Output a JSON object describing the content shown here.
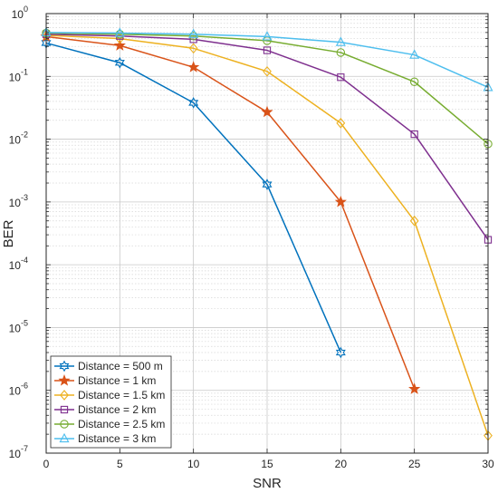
{
  "chart_data": {
    "type": "line",
    "xlabel": "SNR",
    "ylabel": "BER",
    "x": [
      0,
      5,
      10,
      15,
      20,
      25,
      30
    ],
    "xlim": [
      0,
      30
    ],
    "xticks": [
      0,
      5,
      10,
      15,
      20,
      25,
      30
    ],
    "y_scale": "log",
    "ylim": [
      1e-07,
      1
    ],
    "yticks": [
      {
        "base": "10",
        "exp": "0"
      },
      {
        "base": "10",
        "exp": "-1"
      },
      {
        "base": "10",
        "exp": "-2"
      },
      {
        "base": "10",
        "exp": "-3"
      },
      {
        "base": "10",
        "exp": "-4"
      },
      {
        "base": "10",
        "exp": "-5"
      },
      {
        "base": "10",
        "exp": "-6"
      },
      {
        "base": "10",
        "exp": "-7"
      }
    ],
    "grid": true,
    "minor_grid": true,
    "legend_position": "bottom-left",
    "series": [
      {
        "name": "Distance = 500 m",
        "color": "#0072BD",
        "marker": "hexagram",
        "values": [
          0.34,
          0.165,
          0.038,
          0.0019,
          4e-06,
          null,
          null
        ]
      },
      {
        "name": "Distance = 1 km",
        "color": "#D95319",
        "marker": "pentagram",
        "values": [
          0.43,
          0.31,
          0.14,
          0.027,
          0.001,
          1.05e-06,
          null
        ]
      },
      {
        "name": "Distance = 1.5 km",
        "color": "#EDB120",
        "marker": "diamond",
        "values": [
          0.45,
          0.4,
          0.28,
          0.12,
          0.018,
          0.0005,
          1.9e-07
        ]
      },
      {
        "name": "Distance = 2 km",
        "color": "#7E2F8E",
        "marker": "square",
        "values": [
          0.47,
          0.44,
          0.39,
          0.26,
          0.097,
          0.012,
          0.00025
        ]
      },
      {
        "name": "Distance = 2.5 km",
        "color": "#77AC30",
        "marker": "circle",
        "values": [
          0.49,
          0.47,
          0.44,
          0.37,
          0.24,
          0.082,
          0.0084
        ]
      },
      {
        "name": "Distance = 3 km",
        "color": "#4DBEEE",
        "marker": "triangle",
        "values": [
          0.5,
          0.49,
          0.47,
          0.43,
          0.35,
          0.22,
          0.067
        ]
      }
    ]
  }
}
